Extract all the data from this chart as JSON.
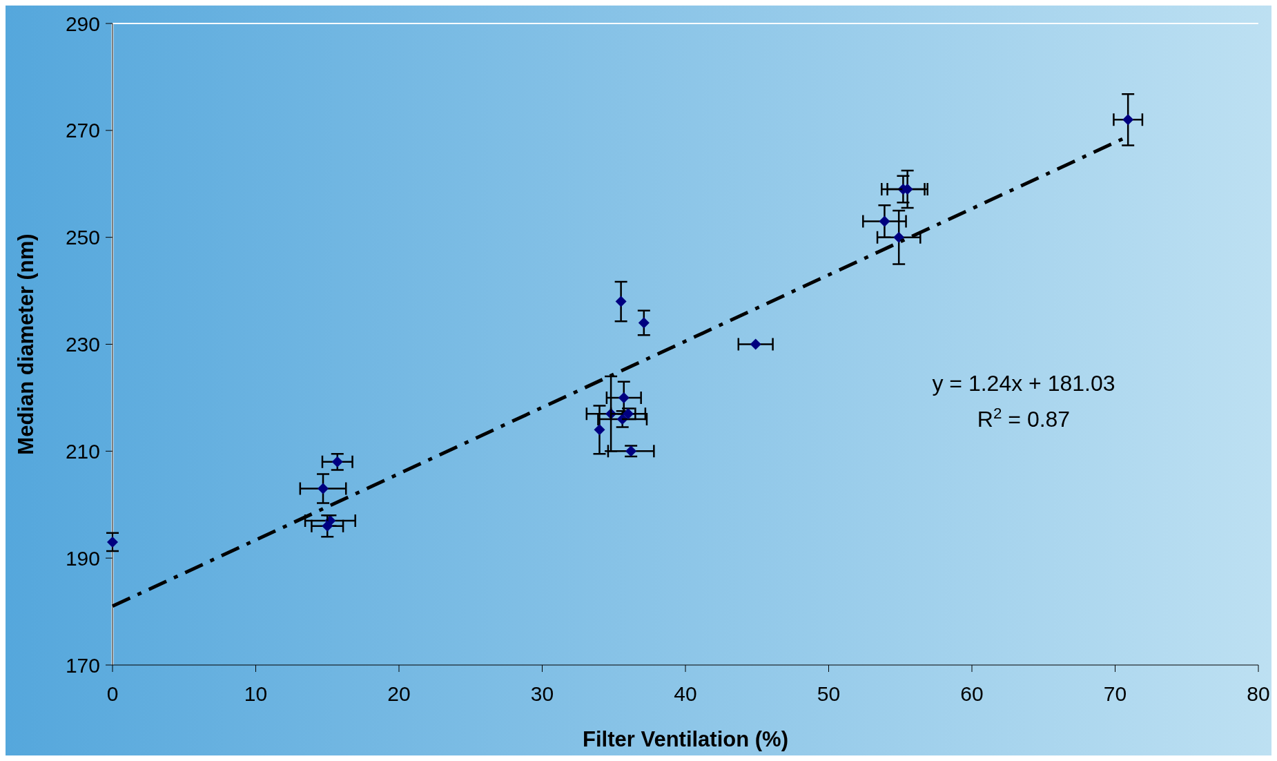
{
  "chart_data": {
    "type": "scatter",
    "xlabel": "Filter Ventilation (%)",
    "ylabel": "Median diameter (nm)",
    "xlim": [
      0,
      80
    ],
    "xticks": [
      0,
      10,
      20,
      30,
      40,
      50,
      60,
      70,
      80
    ],
    "ylim": [
      170,
      290
    ],
    "yticks": [
      170,
      190,
      210,
      230,
      250,
      270,
      290
    ],
    "grid": false,
    "marker": "diamond",
    "annotations": [
      "y = 1.24x + 181.03",
      "R$^{2}$ = 0.87"
    ],
    "series": [
      {
        "color": "#000080",
        "x": [
          0,
          14.7,
          15.7,
          15.2,
          15.0,
          34.0,
          34.8,
          35.7,
          35.6,
          36.0,
          36.2,
          35.5,
          37.1,
          44.9,
          53.9,
          54.9,
          55.2,
          55.5,
          70.9
        ],
        "values": [
          193,
          203,
          208,
          197,
          196,
          214,
          217,
          220,
          216,
          217,
          210,
          238,
          234,
          230,
          253,
          250,
          259,
          259,
          272
        ],
        "errors": [
          1.7,
          2.7,
          1.5,
          1,
          2,
          4.5,
          7,
          3,
          1.5,
          1,
          1,
          3.7,
          2.3,
          null,
          3,
          5,
          2.5,
          3.5,
          4.8
        ],
        "xerrors": [
          null,
          1.6,
          1.05,
          1.75,
          1.1,
          null,
          1.7,
          1.2,
          1.7,
          1.2,
          1.6,
          null,
          null,
          1.2,
          1.5,
          1.5,
          1.5,
          1.4,
          1
        ]
      },
      {
        "type": "line",
        "color": "#000000",
        "line_style": "dashed",
        "marker": "none",
        "x": [
          0,
          71
        ],
        "values": [
          181,
          269
        ]
      }
    ]
  }
}
